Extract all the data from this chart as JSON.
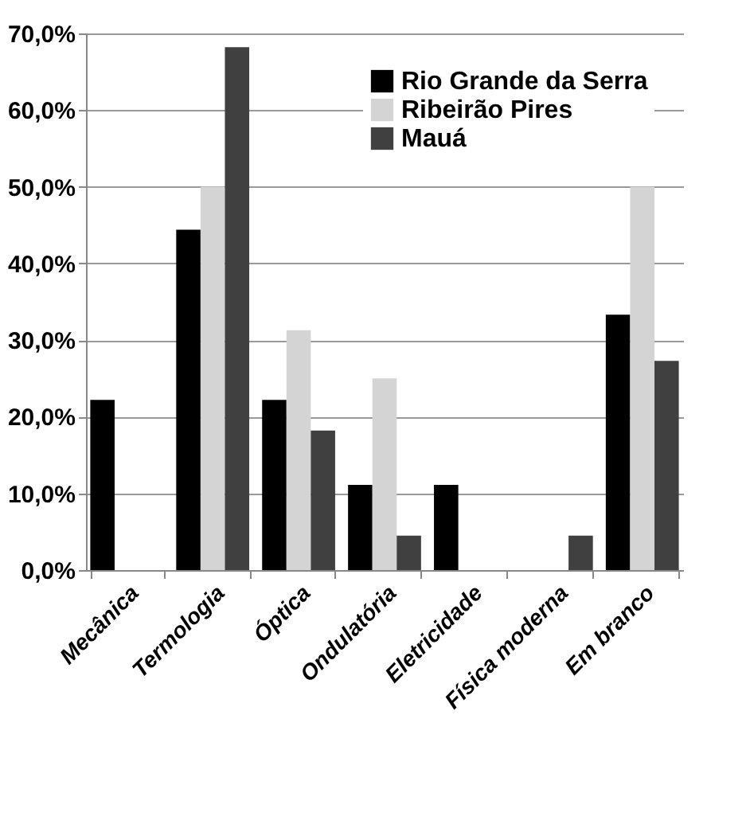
{
  "chart_data": {
    "type": "bar",
    "categories": [
      "Mecânica",
      "Termologia",
      "Óptica",
      "Ondulatória",
      "Eletricidade",
      "Física moderna",
      "Em branco"
    ],
    "series": [
      {
        "name": "Rio Grande da Serra",
        "color": "#000000",
        "values": [
          22.2,
          44.4,
          22.2,
          11.1,
          11.1,
          0,
          33.3
        ]
      },
      {
        "name": "Ribeirão Pires",
        "color": "#d4d4d4",
        "values": [
          0,
          50,
          31.3,
          25,
          0,
          0,
          50
        ]
      },
      {
        "name": "Mauá",
        "color": "#404040",
        "values": [
          0,
          68.2,
          18.2,
          4.5,
          0,
          4.5,
          27.3
        ]
      }
    ],
    "ylim": [
      0,
      70
    ],
    "yticks": [
      {
        "value": 0,
        "label": "0,0%"
      },
      {
        "value": 10,
        "label": "10,0%"
      },
      {
        "value": 20,
        "label": "20,0%"
      },
      {
        "value": 30,
        "label": "30,0%"
      },
      {
        "value": 40,
        "label": "40,0%"
      },
      {
        "value": 50,
        "label": "50,0%"
      },
      {
        "value": 60,
        "label": "60,0%"
      },
      {
        "value": 70,
        "label": "70,0%"
      }
    ],
    "grid": "y",
    "legend": "top right"
  }
}
